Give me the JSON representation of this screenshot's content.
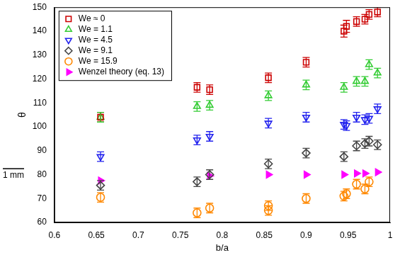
{
  "chart_data": {
    "type": "scatter",
    "x_label": "b/a",
    "y_label": "θ",
    "xlim": [
      0.6,
      1
    ],
    "xticks": [
      0.6,
      0.65,
      0.7,
      0.75,
      0.8,
      0.85,
      0.9,
      0.95,
      1
    ],
    "ylim": [
      60,
      150
    ],
    "yticks": [
      60,
      70,
      80,
      90,
      100,
      110,
      120,
      130,
      140,
      150
    ],
    "grid": false,
    "legend": "upper left",
    "annotations": [
      "1 mm"
    ],
    "series": [
      {
        "name": "We ≈ 0",
        "color": "#cc0000",
        "marker": "square",
        "x": [
          0.655,
          0.77,
          0.785,
          0.855,
          0.9,
          0.945,
          0.948,
          0.96,
          0.97,
          0.975,
          0.985
        ],
        "values": [
          104,
          116.5,
          115.5,
          120.5,
          127,
          140,
          142,
          144,
          145,
          147,
          148
        ],
        "errors": [
          2,
          2,
          2,
          2,
          2,
          2.5,
          2.5,
          2,
          2,
          2,
          2
        ]
      },
      {
        "name": "We = 1.1",
        "color": "#33cc33",
        "marker": "triangle_up",
        "x": [
          0.655,
          0.77,
          0.785,
          0.855,
          0.9,
          0.945,
          0.96,
          0.97,
          0.975,
          0.985
        ],
        "values": [
          104,
          108.5,
          109,
          113,
          117.5,
          116.5,
          119,
          119,
          126,
          122.5
        ],
        "errors": [
          2,
          2,
          2,
          2,
          2,
          2,
          2,
          2,
          2,
          2
        ]
      },
      {
        "name": "We = 4.5",
        "color": "#2222ee",
        "marker": "triangle_down",
        "x": [
          0.655,
          0.77,
          0.785,
          0.855,
          0.9,
          0.945,
          0.948,
          0.96,
          0.97,
          0.975,
          0.985
        ],
        "values": [
          87.5,
          94.5,
          96,
          101.5,
          104,
          101,
          100.5,
          104,
          103,
          103.5,
          107.5
        ],
        "errors": [
          2,
          2,
          2,
          2,
          2,
          2,
          2,
          2,
          2,
          2,
          2
        ]
      },
      {
        "name": "We = 9.1",
        "color": "#444444",
        "marker": "diamond",
        "x": [
          0.655,
          0.77,
          0.785,
          0.855,
          0.9,
          0.945,
          0.96,
          0.97,
          0.975,
          0.985
        ],
        "values": [
          75.5,
          77,
          80,
          84.5,
          89,
          87.5,
          92,
          93,
          94,
          92.5
        ],
        "errors": [
          2,
          2,
          2,
          2,
          2,
          2,
          2,
          2,
          2,
          2
        ]
      },
      {
        "name": "We = 15.9",
        "color": "#ff8800",
        "marker": "circle",
        "x": [
          0.655,
          0.77,
          0.785,
          0.855,
          0.855,
          0.9,
          0.945,
          0.948,
          0.96,
          0.97,
          0.975
        ],
        "values": [
          70.5,
          64,
          66,
          65,
          67,
          70,
          71,
          72,
          76,
          74,
          77
        ],
        "errors": [
          2,
          2,
          2,
          2,
          2,
          2,
          2,
          2,
          2,
          2,
          2
        ]
      },
      {
        "name": "Wenzel theory (eq. 13)",
        "color": "#ff00ff",
        "marker": "triangle_right",
        "x": [
          0.655,
          0.785,
          0.855,
          0.9,
          0.945,
          0.96,
          0.97,
          0.985
        ],
        "values": [
          77.5,
          79.5,
          80,
          80,
          80,
          80.5,
          80.5,
          81
        ]
      }
    ]
  }
}
